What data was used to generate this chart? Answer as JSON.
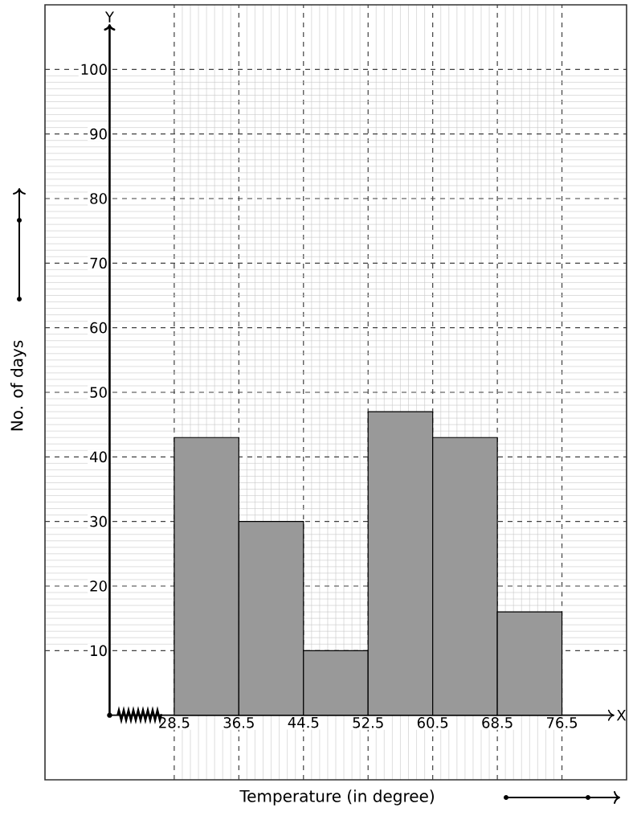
{
  "chart_data": {
    "type": "histogram",
    "xlabel": "Temperature (in degree)",
    "ylabel": "No. of days",
    "bins": [
      28.5,
      36.5,
      44.5,
      52.5,
      60.5,
      68.5,
      76.5
    ],
    "values": [
      43,
      30,
      10,
      47,
      43,
      16
    ],
    "color": "#999999",
    "xlim": [
      12.5,
      84.5
    ],
    "ylim": [
      -10,
      110
    ],
    "xticks": [
      28.5,
      36.5,
      44.5,
      52.5,
      60.5,
      68.5,
      76.5
    ],
    "yticks": [
      10,
      20,
      30,
      40,
      50,
      60,
      70,
      80,
      90,
      100
    ],
    "grid": true,
    "annotations": [
      "Y",
      "X"
    ]
  }
}
